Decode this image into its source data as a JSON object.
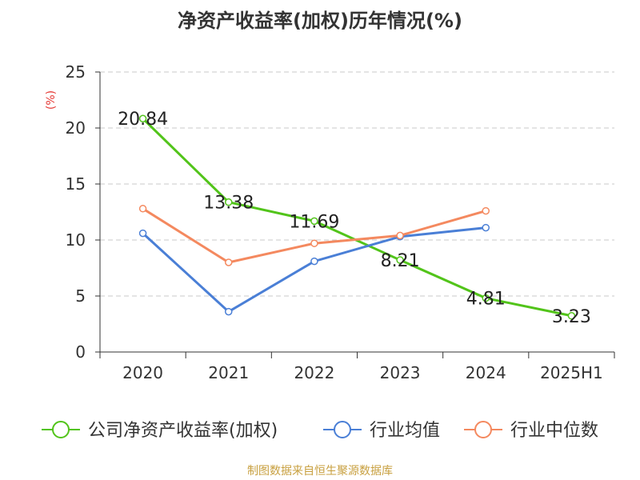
{
  "chart_data": {
    "type": "line",
    "title": "净资产收益率(加权)历年情况(%)",
    "ylabel": "(%)",
    "xlabel": "",
    "categories": [
      "2020",
      "2021",
      "2022",
      "2023",
      "2024",
      "2025H1"
    ],
    "ylim": [
      0,
      25
    ],
    "yticks": [
      0,
      5,
      10,
      15,
      20,
      25
    ],
    "grid": true,
    "legend_position": "bottom",
    "series": [
      {
        "name": "公司净资产收益率(加权)",
        "color": "#52c41a",
        "values": [
          20.84,
          13.38,
          11.69,
          8.21,
          4.81,
          3.23
        ],
        "labels": [
          "20.84",
          "13.38",
          "11.69",
          "8.21",
          "4.81",
          "3.23"
        ]
      },
      {
        "name": "行业均值",
        "color": "#4a7fd6",
        "values": [
          10.6,
          3.6,
          8.1,
          10.3,
          11.1,
          null
        ]
      },
      {
        "name": "行业中位数",
        "color": "#f4895f",
        "values": [
          12.8,
          8.0,
          9.7,
          10.4,
          12.6,
          null
        ]
      }
    ]
  },
  "source": "制图数据来自恒生聚源数据库"
}
